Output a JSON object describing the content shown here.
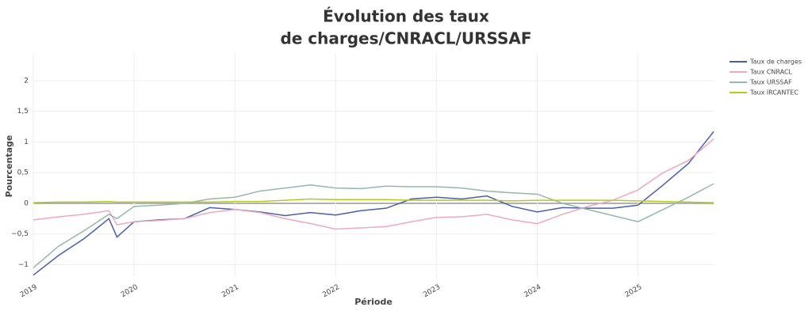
{
  "chart_data": {
    "type": "line",
    "title": [
      "Évolution des taux",
      "de charges/CNRACL/URSSAF"
    ],
    "xlabel": "Période",
    "ylabel": "Pourcentage",
    "x": [
      2019,
      2019.25,
      2019.5,
      2019.75,
      2019.83,
      2020,
      2020.25,
      2020.5,
      2020.75,
      2021,
      2021.25,
      2021.5,
      2021.75,
      2022,
      2022.25,
      2022.5,
      2022.75,
      2023,
      2023.25,
      2023.5,
      2023.75,
      2024,
      2024.25,
      2024.5,
      2024.75,
      2025,
      2025.25,
      2025.5,
      2025.75
    ],
    "series": [
      {
        "name": "Taux de charges",
        "color": "#4a5fa8",
        "values": [
          -1.17,
          -0.85,
          -0.58,
          -0.25,
          -0.55,
          -0.3,
          -0.27,
          -0.25,
          -0.07,
          -0.1,
          -0.14,
          -0.2,
          -0.15,
          -0.19,
          -0.12,
          -0.08,
          0.07,
          0.1,
          0.07,
          0.12,
          -0.05,
          -0.14,
          -0.07,
          -0.08,
          -0.08,
          -0.03,
          0.3,
          0.65,
          1.17
        ]
      },
      {
        "name": "Taux CNRACL",
        "color": "#eea9bd",
        "values": [
          -0.27,
          -0.22,
          -0.18,
          -0.12,
          -0.35,
          -0.3,
          -0.28,
          -0.25,
          -0.15,
          -0.1,
          -0.15,
          -0.25,
          -0.33,
          -0.42,
          -0.4,
          -0.38,
          -0.3,
          -0.23,
          -0.22,
          -0.18,
          -0.27,
          -0.33,
          -0.18,
          -0.05,
          0.05,
          0.22,
          0.5,
          0.7,
          1.05
        ]
      },
      {
        "name": "Taux URSSAF",
        "color": "#94b8aa",
        "values": [
          -1.05,
          -0.7,
          -0.45,
          -0.18,
          -0.25,
          -0.05,
          -0.03,
          0,
          0.07,
          0.1,
          0.2,
          0.25,
          0.3,
          0.25,
          0.24,
          0.28,
          0.27,
          0.27,
          0.25,
          0.2,
          0.17,
          0.15,
          0,
          -0.1,
          -0.2,
          -0.3,
          -0.1,
          0.1,
          0.32
        ]
      },
      {
        "name": "Taux IRCANTEC",
        "color": "#b5cc1e",
        "values": [
          0.01,
          0.02,
          0.02,
          0.03,
          0.02,
          0.02,
          0.02,
          0.02,
          0.02,
          0.03,
          0.03,
          0.05,
          0.07,
          0.06,
          0.06,
          0.06,
          0.05,
          0.05,
          0.05,
          0.05,
          0.04,
          0.05,
          0.05,
          0.05,
          0.05,
          0.04,
          0.03,
          0.02,
          0.01
        ]
      }
    ],
    "xlim": [
      2019,
      2025.75
    ],
    "xticks": [
      2019,
      2020,
      2021,
      2022,
      2023,
      2024,
      2025
    ],
    "ylim": [
      -1.2,
      2.45
    ],
    "yticks": [
      {
        "value": -1,
        "label": "−1"
      },
      {
        "value": -0.5,
        "label": "−0,5"
      },
      0,
      {
        "value": 0.5,
        "label": "0,5"
      },
      1,
      {
        "value": 1.5,
        "label": "1,5"
      },
      2
    ],
    "grid": true,
    "legend": "right"
  }
}
